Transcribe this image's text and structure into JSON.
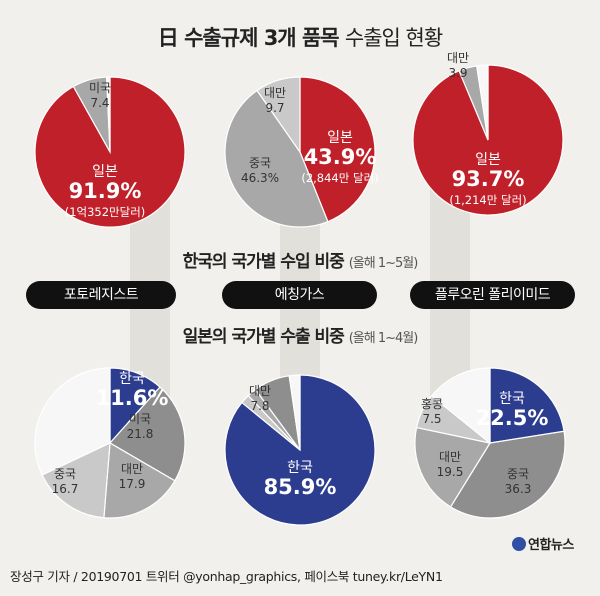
{
  "title": {
    "flag": "日",
    "bold": "수출규제 3개 품목",
    "light": "수출입 현황"
  },
  "import_heading": {
    "bold": "한국의 국가별 수입 비중",
    "light": "(올해 1~5월)"
  },
  "export_heading": {
    "bold": "일본의 국가별 수출 비중",
    "light": "(올해 1~4월)"
  },
  "products": [
    "포토레지스트",
    "에칭가스",
    "플루오린 폴리이미드"
  ],
  "credit": "장성구 기자 / 20190701  트위터 @yonhap_graphics, 페이스북 tuney.kr/LeYN1",
  "logo": "연합뉴스",
  "colors": {
    "japan_red": "#c0202a",
    "korea_blue": "#2c3d8f",
    "gray_dark": "#8e8e8e",
    "gray_mid": "#a8a8a8",
    "gray_light": "#c9c9c9",
    "white": "#f7f7f7"
  },
  "chart_data": [
    {
      "type": "pie",
      "title": "포토레지스트 — 한국의 국가별 수입 비중",
      "slices": [
        {
          "name": "일본",
          "value": 91.9,
          "pct": "91.9%",
          "note": "(1억352만달러)",
          "color": "#c0202a"
        },
        {
          "name": "미국",
          "value": 7.4,
          "pct": "7.4",
          "color": "#a8a8a8"
        },
        {
          "name": "",
          "value": 0.7,
          "color": "#f7f7f7"
        }
      ]
    },
    {
      "type": "pie",
      "title": "에칭가스 — 한국의 국가별 수입 비중",
      "slices": [
        {
          "name": "일본",
          "value": 43.9,
          "pct": "43.9%",
          "note": "(2,844만 달러)",
          "color": "#c0202a"
        },
        {
          "name": "중국",
          "value": 46.3,
          "pct": "46.3%",
          "color": "#a8a8a8"
        },
        {
          "name": "대만",
          "value": 9.7,
          "pct": "9.7",
          "color": "#c9c9c9"
        }
      ]
    },
    {
      "type": "pie",
      "title": "플루오린 폴리이미드 — 한국의 국가별 수입 비중",
      "slices": [
        {
          "name": "일본",
          "value": 93.7,
          "pct": "93.7%",
          "note": "(1,214만 달러)",
          "color": "#c0202a"
        },
        {
          "name": "대만",
          "value": 3.9,
          "pct": "3.9",
          "color": "#a8a8a8"
        },
        {
          "name": "",
          "value": 2.4,
          "color": "#f7f7f7"
        }
      ]
    },
    {
      "type": "pie",
      "title": "포토레지스트 — 일본의 국가별 수출 비중",
      "slices": [
        {
          "name": "한국",
          "value": 11.6,
          "pct": "11.6%",
          "color": "#2c3d8f"
        },
        {
          "name": "미국",
          "value": 21.8,
          "pct": "21.8",
          "color": "#8e8e8e"
        },
        {
          "name": "대만",
          "value": 17.9,
          "pct": "17.9",
          "color": "#a8a8a8"
        },
        {
          "name": "중국",
          "value": 16.7,
          "pct": "16.7",
          "color": "#c9c9c9"
        },
        {
          "name": "",
          "value": 32.0,
          "color": "#f7f7f7"
        }
      ]
    },
    {
      "type": "pie",
      "title": "에칭가스 — 일본의 국가별 수출 비중",
      "slices": [
        {
          "name": "한국",
          "value": 85.9,
          "pct": "85.9%",
          "color": "#2c3d8f"
        },
        {
          "name": "",
          "value": 2.0,
          "color": "#c9c9c9"
        },
        {
          "name": "",
          "value": 2.0,
          "color": "#a8a8a8"
        },
        {
          "name": "대만",
          "value": 7.8,
          "pct": "7.8",
          "color": "#8e8e8e"
        },
        {
          "name": "",
          "value": 2.3,
          "color": "#f7f7f7"
        }
      ]
    },
    {
      "type": "pie",
      "title": "플루오린 폴리이미드 — 일본의 국가별 수출 비중",
      "slices": [
        {
          "name": "한국",
          "value": 22.5,
          "pct": "22.5%",
          "color": "#2c3d8f"
        },
        {
          "name": "중국",
          "value": 36.3,
          "pct": "36.3",
          "color": "#8e8e8e"
        },
        {
          "name": "대만",
          "value": 19.5,
          "pct": "19.5",
          "color": "#a8a8a8"
        },
        {
          "name": "홍콩",
          "value": 7.5,
          "pct": "7.5",
          "color": "#c9c9c9"
        },
        {
          "name": "",
          "value": 14.2,
          "color": "#f7f7f7"
        }
      ]
    }
  ]
}
